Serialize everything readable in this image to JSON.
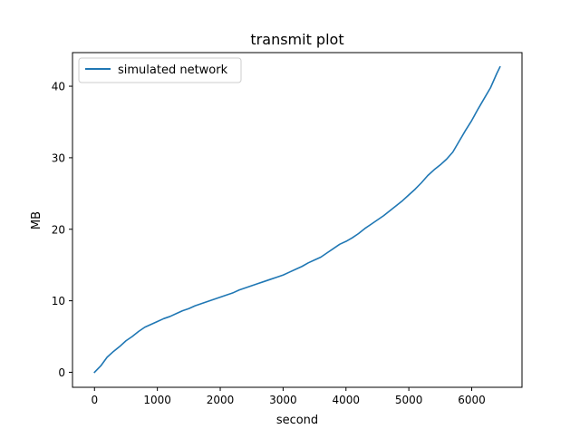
{
  "chart_data": {
    "type": "line",
    "title": "transmit plot",
    "xlabel": "second",
    "ylabel": "MB",
    "xlim": [
      -350,
      6800
    ],
    "ylim": [
      -2.1,
      44.7
    ],
    "xticks": [
      0,
      1000,
      2000,
      3000,
      4000,
      5000,
      6000
    ],
    "yticks": [
      0,
      10,
      20,
      30,
      40
    ],
    "grid": false,
    "legend": {
      "position": "top-left"
    },
    "series": [
      {
        "name": "simulated network",
        "color": "#1f77b4",
        "x": [
          0,
          100,
          200,
          300,
          400,
          500,
          600,
          700,
          800,
          900,
          1000,
          1100,
          1200,
          1300,
          1400,
          1500,
          1600,
          1700,
          1800,
          1900,
          2000,
          2100,
          2200,
          2300,
          2400,
          2500,
          2600,
          2700,
          2800,
          2900,
          3000,
          3100,
          3200,
          3300,
          3400,
          3500,
          3600,
          3700,
          3800,
          3900,
          4000,
          4100,
          4200,
          4300,
          4400,
          4500,
          4600,
          4700,
          4800,
          4900,
          5000,
          5100,
          5200,
          5300,
          5400,
          5500,
          5600,
          5700,
          5800,
          5900,
          6000,
          6100,
          6200,
          6300,
          6400,
          6450
        ],
        "y": [
          0.0,
          0.9,
          2.1,
          2.9,
          3.6,
          4.4,
          5.0,
          5.7,
          6.3,
          6.7,
          7.1,
          7.5,
          7.8,
          8.2,
          8.6,
          8.9,
          9.3,
          9.6,
          9.9,
          10.2,
          10.5,
          10.8,
          11.1,
          11.5,
          11.8,
          12.1,
          12.4,
          12.7,
          13.0,
          13.3,
          13.6,
          14.0,
          14.4,
          14.8,
          15.3,
          15.7,
          16.1,
          16.7,
          17.3,
          17.9,
          18.3,
          18.8,
          19.4,
          20.1,
          20.7,
          21.3,
          21.9,
          22.6,
          23.3,
          24.0,
          24.8,
          25.6,
          26.5,
          27.5,
          28.3,
          29.0,
          29.8,
          30.8,
          32.3,
          33.8,
          35.2,
          36.8,
          38.3,
          39.8,
          41.8,
          42.7
        ]
      }
    ]
  }
}
